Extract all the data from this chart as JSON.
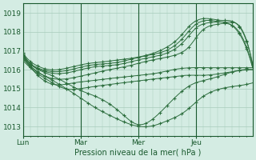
{
  "xlabel": "Pression niveau de la mer( hPa )",
  "ylim": [
    1012.5,
    1019.5
  ],
  "yticks": [
    1013,
    1014,
    1015,
    1016,
    1017,
    1018,
    1019
  ],
  "day_labels": [
    "Lun",
    "Mar",
    "Mer",
    "Jeu"
  ],
  "day_positions": [
    0,
    48,
    96,
    144
  ],
  "total_points": 192,
  "bg_color": "#d4ece3",
  "grid_color": "#a8ccbc",
  "line_color": "#2d6e3e",
  "marker_color": "#2d6e3e",
  "lines": [
    {
      "key_x": [
        0,
        8,
        20,
        36,
        48,
        60,
        80,
        96,
        110,
        126,
        140,
        155,
        170,
        191
      ],
      "key_y": [
        1016.8,
        1016.2,
        1015.8,
        1015.3,
        1014.9,
        1014.6,
        1013.8,
        1013.1,
        1013.5,
        1014.5,
        1015.2,
        1015.5,
        1015.8,
        1016.0
      ]
    },
    {
      "key_x": [
        0,
        8,
        20,
        36,
        48,
        60,
        75,
        90,
        105,
        120,
        135,
        148,
        165,
        191
      ],
      "key_y": [
        1016.7,
        1016.1,
        1015.6,
        1015.0,
        1014.5,
        1014.0,
        1013.5,
        1013.1,
        1013.0,
        1013.3,
        1013.8,
        1014.5,
        1015.0,
        1015.3
      ]
    },
    {
      "key_x": [
        0,
        10,
        22,
        35,
        48,
        58,
        70,
        82,
        95,
        108,
        122,
        136,
        150,
        165,
        191
      ],
      "key_y": [
        1016.5,
        1015.9,
        1015.4,
        1015.0,
        1015.0,
        1015.1,
        1015.2,
        1015.3,
        1015.4,
        1015.5,
        1015.6,
        1015.7,
        1015.7,
        1015.8,
        1016.0
      ]
    },
    {
      "key_x": [
        0,
        8,
        16,
        28,
        42,
        55,
        68,
        82,
        96,
        110,
        125,
        140,
        155,
        170,
        191
      ],
      "key_y": [
        1016.6,
        1016.0,
        1015.5,
        1015.2,
        1015.3,
        1015.4,
        1015.5,
        1015.6,
        1015.7,
        1015.8,
        1016.0,
        1016.1,
        1016.1,
        1016.1,
        1016.1
      ]
    },
    {
      "key_x": [
        0,
        6,
        14,
        28,
        44,
        58,
        72,
        88,
        100,
        115,
        128,
        138,
        148,
        162,
        175,
        191
      ],
      "key_y": [
        1016.7,
        1016.2,
        1015.8,
        1015.5,
        1015.6,
        1015.8,
        1016.0,
        1016.2,
        1016.4,
        1016.6,
        1016.8,
        1017.2,
        1018.0,
        1018.4,
        1018.3,
        1016.1
      ]
    },
    {
      "key_x": [
        0,
        6,
        14,
        26,
        42,
        55,
        68,
        82,
        95,
        110,
        124,
        134,
        144,
        158,
        172,
        191
      ],
      "key_y": [
        1016.8,
        1016.3,
        1016.0,
        1015.8,
        1015.9,
        1016.1,
        1016.2,
        1016.3,
        1016.5,
        1016.7,
        1017.0,
        1017.5,
        1018.2,
        1018.5,
        1018.4,
        1016.1
      ]
    },
    {
      "key_x": [
        0,
        5,
        12,
        24,
        40,
        53,
        66,
        80,
        93,
        108,
        122,
        132,
        142,
        155,
        168,
        180,
        191
      ],
      "key_y": [
        1016.9,
        1016.4,
        1016.1,
        1015.9,
        1016.0,
        1016.2,
        1016.3,
        1016.4,
        1016.6,
        1016.8,
        1017.1,
        1017.6,
        1018.3,
        1018.6,
        1018.5,
        1018.3,
        1016.2
      ]
    },
    {
      "key_x": [
        0,
        5,
        12,
        22,
        38,
        52,
        65,
        78,
        90,
        105,
        120,
        130,
        140,
        152,
        165,
        178,
        191
      ],
      "key_y": [
        1016.9,
        1016.5,
        1016.2,
        1016.0,
        1016.1,
        1016.3,
        1016.4,
        1016.5,
        1016.6,
        1016.8,
        1017.2,
        1017.7,
        1018.4,
        1018.7,
        1018.6,
        1018.4,
        1016.3
      ]
    }
  ]
}
